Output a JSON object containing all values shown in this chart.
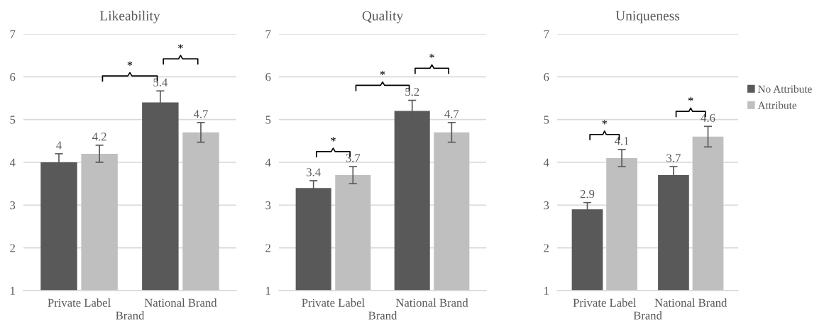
{
  "chart_data": [
    {
      "type": "bar",
      "title": "Likeability",
      "xlabel": "Brand",
      "categories": [
        "Private Label",
        "National Brand"
      ],
      "series": [
        {
          "color": "#595959",
          "values": [
            4,
            5.4
          ],
          "errors": [
            0.2,
            0.27
          ]
        },
        {
          "color": "#bfbfbf",
          "values": [
            4.2,
            4.7
          ],
          "errors": [
            0.2,
            0.23
          ]
        }
      ],
      "ylim": [
        1,
        7
      ],
      "yticks": [
        1,
        2,
        3,
        4,
        5,
        6,
        7
      ],
      "grid": "y",
      "data_labels": true,
      "legend": false,
      "annotations": [
        "*",
        "*"
      ]
    },
    {
      "type": "bar",
      "title": "Quality",
      "xlabel": "Brand",
      "categories": [
        "Private Label",
        "National Brand"
      ],
      "series": [
        {
          "color": "#595959",
          "values": [
            3.4,
            5.2
          ],
          "errors": [
            0.17,
            0.25
          ]
        },
        {
          "color": "#bfbfbf",
          "values": [
            3.7,
            4.7
          ],
          "errors": [
            0.2,
            0.23
          ]
        }
      ],
      "ylim": [
        1,
        7
      ],
      "yticks": [
        1,
        2,
        3,
        4,
        5,
        6,
        7
      ],
      "grid": "y",
      "data_labels": true,
      "legend": false,
      "annotations": [
        "*",
        "*",
        "*"
      ]
    },
    {
      "type": "bar",
      "title": "Uniqueness",
      "xlabel": "Brand",
      "categories": [
        "Private Label",
        "National Brand"
      ],
      "series": [
        {
          "name": "No Attribute",
          "color": "#595959",
          "values": [
            2.9,
            3.7
          ],
          "errors": [
            0.16,
            0.2
          ]
        },
        {
          "name": "Attribute",
          "color": "#bfbfbf",
          "values": [
            4.1,
            4.6
          ],
          "errors": [
            0.2,
            0.24
          ]
        }
      ],
      "ylim": [
        1,
        7
      ],
      "yticks": [
        1,
        2,
        3,
        4,
        5,
        6,
        7
      ],
      "grid": "y",
      "data_labels": true,
      "legend": "right",
      "annotations": [
        "*",
        "*"
      ]
    }
  ]
}
